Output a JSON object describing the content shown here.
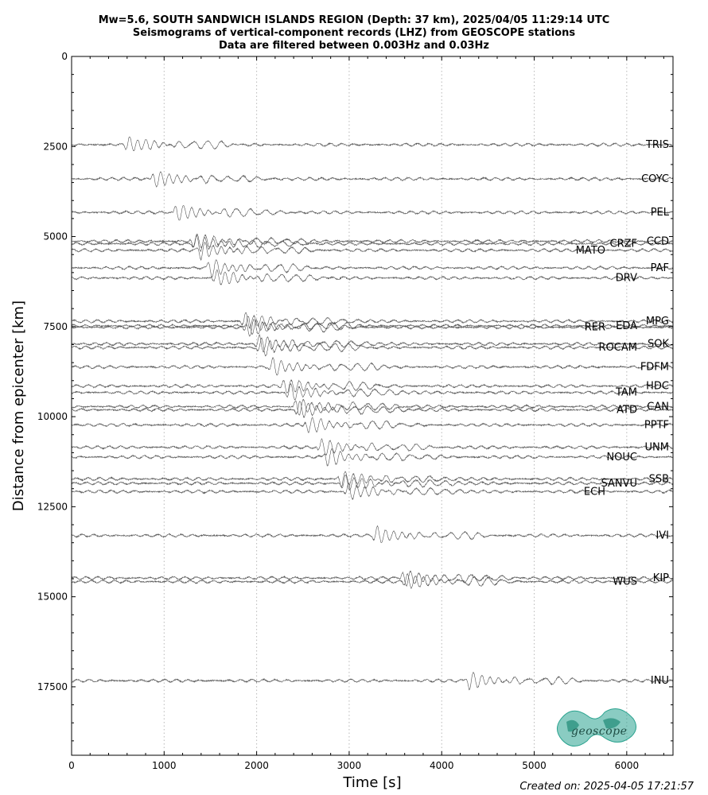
{
  "header": {
    "line1": "Mw=5.6, SOUTH SANDWICH ISLANDS REGION (Depth: 37 km), 2025/04/05 11:29:14 UTC",
    "line2": "Seismograms of vertical-component records (LHZ) from GEOSCOPE stations",
    "line3": "Data are filtered between 0.003Hz and 0.03Hz"
  },
  "footer": {
    "created": "Created on: 2025-04-05 17:21:57"
  },
  "logo": {
    "text": "geoscope",
    "color": "#2aa38f"
  },
  "chart_data": {
    "type": "line",
    "title": "Mw=5.6, SOUTH SANDWICH ISLANDS REGION (Depth: 37 km), 2025/04/05 11:29:14 UTC",
    "xlabel": "Time [s]",
    "ylabel": "Distance from epicenter [km]",
    "xlim": [
      0,
      6500
    ],
    "ylim": [
      19400,
      0
    ],
    "xticks": [
      0,
      1000,
      2000,
      3000,
      4000,
      5000,
      6000
    ],
    "yticks": [
      0,
      2500,
      5000,
      7500,
      10000,
      12500,
      15000,
      17500
    ],
    "vertical_grid": "dotted at major x ticks",
    "trace_color": "#555555",
    "stations": [
      {
        "name": "TRIS",
        "distance": 2450,
        "arrival": 620
      },
      {
        "name": "COYC",
        "distance": 3400,
        "arrival": 900
      },
      {
        "name": "PEL",
        "distance": 4330,
        "arrival": 1140
      },
      {
        "name": "CCD",
        "distance": 5130,
        "arrival": 1330
      },
      {
        "name": "CRZF",
        "distance": 5200,
        "arrival": 1350
      },
      {
        "name": "MATO",
        "distance": 5380,
        "arrival": 1400
      },
      {
        "name": "PAF",
        "distance": 5870,
        "arrival": 1500
      },
      {
        "name": "DRV",
        "distance": 6150,
        "arrival": 1570
      },
      {
        "name": "MPG",
        "distance": 7350,
        "arrival": 1880
      },
      {
        "name": "EDA",
        "distance": 7480,
        "arrival": 1900
      },
      {
        "name": "RER",
        "distance": 7520,
        "arrival": 1920
      },
      {
        "name": "SOK",
        "distance": 7980,
        "arrival": 2030
      },
      {
        "name": "ROCAM",
        "distance": 8080,
        "arrival": 2050
      },
      {
        "name": "FDFM",
        "distance": 8620,
        "arrival": 2180
      },
      {
        "name": "HDC",
        "distance": 9150,
        "arrival": 2310
      },
      {
        "name": "TAM",
        "distance": 9330,
        "arrival": 2360
      },
      {
        "name": "CAN",
        "distance": 9720,
        "arrival": 2440
      },
      {
        "name": "ATD",
        "distance": 9810,
        "arrival": 2460
      },
      {
        "name": "PPTF",
        "distance": 10230,
        "arrival": 2560
      },
      {
        "name": "UNM",
        "distance": 10850,
        "arrival": 2700
      },
      {
        "name": "NOUC",
        "distance": 11120,
        "arrival": 2760
      },
      {
        "name": "SSB",
        "distance": 11730,
        "arrival": 2920
      },
      {
        "name": "SANVU",
        "distance": 11850,
        "arrival": 2950
      },
      {
        "name": "ECH",
        "distance": 12080,
        "arrival": 3000
      },
      {
        "name": "IVI",
        "distance": 13300,
        "arrival": 3300
      },
      {
        "name": "KIP",
        "distance": 14480,
        "arrival": 3600
      },
      {
        "name": "WUS",
        "distance": 14580,
        "arrival": 3630
      },
      {
        "name": "INU",
        "distance": 17330,
        "arrival": 4300
      }
    ]
  }
}
